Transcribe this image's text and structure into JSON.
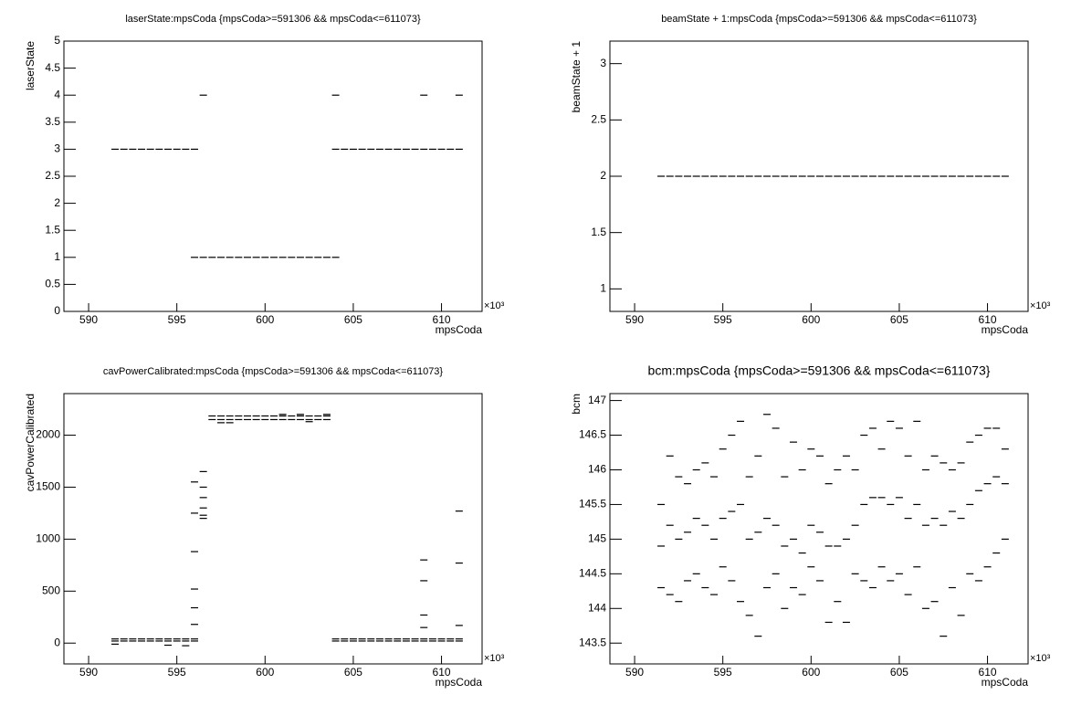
{
  "chart_data": [
    {
      "type": "scatter",
      "title": "laserState:mpsCoda {mpsCoda>=591306 && mpsCoda<=611073}",
      "x_label": "mpsCoda",
      "y_label": "laserState",
      "x_multiplier": "×10³",
      "color": "#000000",
      "xlim": [
        588.6,
        612.3
      ],
      "xticks": [
        590,
        595,
        600,
        605,
        610
      ],
      "ylim": [
        0,
        5
      ],
      "yticks": [
        0,
        0.5,
        1,
        1.5,
        2,
        2.5,
        3,
        3.5,
        4,
        4.5,
        5
      ],
      "x": [
        591.5,
        592,
        592.5,
        593,
        593.5,
        594,
        594.5,
        595,
        595.5,
        596,
        596.5,
        597,
        597.5,
        598,
        598.5,
        599,
        599.5,
        600,
        600.5,
        601,
        601.5,
        602,
        602.5,
        603,
        603.5,
        604,
        604.5,
        605,
        605.5,
        606,
        606.5,
        607,
        607.5,
        608,
        608.5,
        609,
        609.5,
        610,
        610.5,
        611
      ],
      "series": [
        {
          "values": [
            3,
            3,
            3,
            3,
            3,
            3,
            3,
            3,
            3,
            3,
            4,
            1,
            1,
            1,
            1,
            1,
            1,
            1,
            1,
            1,
            1,
            1,
            1,
            1,
            1,
            1,
            3,
            3,
            3,
            3,
            3,
            3,
            3,
            3,
            3,
            3,
            3,
            3,
            3,
            3
          ]
        },
        {
          "values": [
            null,
            null,
            null,
            null,
            null,
            null,
            null,
            null,
            null,
            1,
            1,
            null,
            null,
            null,
            null,
            null,
            null,
            null,
            null,
            null,
            null,
            null,
            null,
            null,
            null,
            3,
            null,
            null,
            null,
            null,
            null,
            null,
            null,
            null,
            null,
            4,
            null,
            null,
            null,
            4
          ]
        },
        {
          "values": [
            null,
            null,
            null,
            null,
            null,
            null,
            null,
            null,
            null,
            null,
            null,
            null,
            null,
            null,
            null,
            null,
            null,
            null,
            null,
            null,
            null,
            null,
            null,
            null,
            null,
            4,
            null,
            null,
            null,
            null,
            null,
            null,
            null,
            null,
            null,
            null,
            null,
            null,
            null,
            null
          ]
        }
      ]
    },
    {
      "type": "scatter",
      "title": "beamState + 1:mpsCoda {mpsCoda>=591306 && mpsCoda<=611073}",
      "x_label": "mpsCoda",
      "y_label": "beamState + 1",
      "x_multiplier": "×10³",
      "color": "#000000",
      "xlim": [
        588.6,
        612.3
      ],
      "xticks": [
        590,
        595,
        600,
        605,
        610
      ],
      "ylim": [
        0.8,
        3.2
      ],
      "yticks": [
        1,
        1.5,
        2,
        2.5,
        3
      ],
      "x": [
        591.5,
        592,
        592.5,
        593,
        593.5,
        594,
        594.5,
        595,
        595.5,
        596,
        596.5,
        597,
        597.5,
        598,
        598.5,
        599,
        599.5,
        600,
        600.5,
        601,
        601.5,
        602,
        602.5,
        603,
        603.5,
        604,
        604.5,
        605,
        605.5,
        606,
        606.5,
        607,
        607.5,
        608,
        608.5,
        609,
        609.5,
        610,
        610.5,
        611
      ],
      "series": [
        {
          "values": [
            2,
            2,
            2,
            2,
            2,
            2,
            2,
            2,
            2,
            2,
            2,
            2,
            2,
            2,
            2,
            2,
            2,
            2,
            2,
            2,
            2,
            2,
            2,
            2,
            2,
            2,
            2,
            2,
            2,
            2,
            2,
            2,
            2,
            2,
            2,
            2,
            2,
            2,
            2,
            2
          ]
        }
      ]
    },
    {
      "type": "scatter",
      "title": "cavPowerCalibrated:mpsCoda {mpsCoda>=591306 && mpsCoda<=611073}",
      "x_label": "mpsCoda",
      "y_label": "cavPowerCalibrated",
      "x_multiplier": "×10³",
      "color": "#000000",
      "xlim": [
        588.6,
        612.3
      ],
      "xticks": [
        590,
        595,
        600,
        605,
        610
      ],
      "ylim": [
        -200,
        2400
      ],
      "yticks": [
        0,
        500,
        1000,
        1500,
        2000
      ],
      "x": [
        591.5,
        592,
        592.5,
        593,
        593.5,
        594,
        594.5,
        595,
        595.5,
        596,
        596.5,
        597,
        597.5,
        598,
        598.5,
        599,
        599.5,
        600,
        600.5,
        601,
        601.5,
        602,
        602.5,
        603,
        603.5,
        604,
        604.5,
        605,
        605.5,
        606,
        606.5,
        607,
        607.5,
        608,
        608.5,
        609,
        609.5,
        610,
        610.5,
        611
      ],
      "series": [
        {
          "values": [
            20,
            20,
            20,
            20,
            20,
            20,
            20,
            20,
            20,
            20,
            null,
            null,
            null,
            null,
            null,
            null,
            null,
            null,
            null,
            null,
            null,
            null,
            null,
            null,
            null,
            20,
            20,
            20,
            20,
            20,
            20,
            20,
            20,
            20,
            20,
            20,
            20,
            20,
            20,
            20
          ]
        },
        {
          "values": [
            40,
            40,
            40,
            40,
            40,
            40,
            40,
            40,
            40,
            40,
            null,
            2150,
            2150,
            2150,
            2150,
            2150,
            2150,
            2150,
            2150,
            2150,
            2150,
            2150,
            2150,
            2150,
            2150,
            40,
            40,
            40,
            40,
            40,
            40,
            40,
            40,
            40,
            40,
            40,
            40,
            40,
            40,
            40
          ]
        },
        {
          "values": [
            null,
            null,
            null,
            null,
            null,
            null,
            null,
            null,
            null,
            180,
            1200,
            2185,
            2185,
            2185,
            2185,
            2185,
            2185,
            2185,
            2185,
            2185,
            2185,
            2185,
            2185,
            2185,
            2185,
            null,
            null,
            null,
            null,
            null,
            null,
            null,
            null,
            null,
            null,
            600,
            null,
            null,
            null,
            1270
          ]
        },
        {
          "values": [
            -10,
            null,
            null,
            null,
            null,
            null,
            -20,
            null,
            -25,
            340,
            1300,
            null,
            2120,
            2120,
            null,
            null,
            null,
            null,
            null,
            2200,
            null,
            2200,
            2130,
            null,
            2200,
            null,
            null,
            null,
            null,
            null,
            null,
            null,
            null,
            null,
            null,
            270,
            null,
            null,
            null,
            770
          ]
        },
        {
          "values": [
            null,
            null,
            null,
            null,
            null,
            null,
            null,
            null,
            null,
            520,
            1400,
            null,
            null,
            null,
            null,
            null,
            null,
            null,
            null,
            null,
            null,
            null,
            null,
            null,
            null,
            null,
            null,
            null,
            null,
            null,
            null,
            null,
            null,
            null,
            null,
            800,
            null,
            null,
            null,
            170
          ]
        },
        {
          "values": [
            null,
            null,
            null,
            null,
            null,
            null,
            null,
            null,
            null,
            880,
            1500,
            null,
            null,
            null,
            null,
            null,
            null,
            null,
            null,
            null,
            null,
            null,
            null,
            null,
            null,
            null,
            null,
            null,
            null,
            null,
            null,
            null,
            null,
            null,
            null,
            150,
            null,
            null,
            null,
            null
          ]
        },
        {
          "values": [
            null,
            null,
            null,
            null,
            null,
            null,
            null,
            null,
            null,
            1250,
            1650,
            null,
            null,
            null,
            null,
            null,
            null,
            null,
            null,
            null,
            null,
            null,
            null,
            null,
            null,
            null,
            null,
            null,
            null,
            null,
            null,
            null,
            null,
            null,
            null,
            null,
            null,
            null,
            null,
            null
          ]
        },
        {
          "values": [
            null,
            null,
            null,
            null,
            null,
            null,
            null,
            null,
            null,
            1550,
            1230,
            null,
            null,
            null,
            null,
            null,
            null,
            null,
            null,
            null,
            null,
            null,
            null,
            null,
            null,
            null,
            null,
            null,
            null,
            null,
            null,
            null,
            null,
            null,
            null,
            null,
            null,
            null,
            null,
            null
          ]
        }
      ]
    },
    {
      "type": "scatter",
      "title": "bcm:mpsCoda {mpsCoda>=591306 && mpsCoda<=611073}",
      "x_label": "mpsCoda",
      "y_label": "bcm",
      "x_multiplier": "×10³",
      "color": "#000000",
      "xlim": [
        588.6,
        612.3
      ],
      "xticks": [
        590,
        595,
        600,
        605,
        610
      ],
      "ylim": [
        143.2,
        147.1
      ],
      "yticks": [
        143.5,
        144,
        144.5,
        145,
        145.5,
        146,
        146.5,
        147
      ],
      "x": [
        591.5,
        592,
        592.5,
        593,
        593.5,
        594,
        594.5,
        595,
        595.5,
        596,
        596.5,
        597,
        597.5,
        598,
        598.5,
        599,
        599.5,
        600,
        600.5,
        601,
        601.5,
        602,
        602.5,
        603,
        603.5,
        604,
        604.5,
        605,
        605.5,
        606,
        606.5,
        607,
        607.5,
        608,
        608.5,
        609,
        609.5,
        610,
        610.5,
        611
      ],
      "series": [
        {
          "values": [
            144.3,
            144.2,
            144.1,
            144.4,
            144.5,
            144.3,
            144.2,
            144.6,
            144.4,
            144.1,
            143.9,
            143.6,
            144.3,
            144.5,
            144.0,
            144.3,
            144.2,
            144.6,
            144.4,
            143.8,
            144.1,
            143.8,
            144.5,
            144.4,
            144.3,
            144.6,
            144.4,
            144.5,
            144.2,
            144.6,
            144.0,
            144.1,
            143.6,
            144.3,
            143.9,
            144.5,
            144.4,
            144.6,
            144.8,
            145.0
          ]
        },
        {
          "values": [
            144.9,
            145.2,
            145.0,
            145.1,
            145.3,
            145.2,
            145.0,
            145.3,
            145.4,
            145.5,
            145.0,
            145.1,
            145.3,
            145.2,
            144.9,
            145.0,
            144.8,
            145.2,
            145.1,
            144.9,
            144.9,
            145.0,
            145.2,
            145.5,
            145.6,
            145.6,
            145.5,
            145.6,
            145.3,
            145.5,
            145.2,
            145.3,
            145.2,
            145.4,
            145.3,
            145.5,
            145.7,
            145.8,
            145.9,
            145.8
          ]
        },
        {
          "values": [
            145.5,
            146.2,
            145.9,
            145.8,
            146.0,
            146.1,
            145.9,
            146.3,
            146.5,
            146.7,
            145.9,
            146.2,
            146.8,
            146.6,
            145.9,
            146.4,
            146.0,
            146.3,
            146.2,
            145.8,
            146.0,
            146.2,
            146.0,
            146.5,
            146.6,
            146.3,
            146.7,
            146.6,
            146.2,
            146.7,
            146.0,
            146.2,
            146.1,
            146.0,
            146.1,
            146.4,
            146.5,
            146.6,
            146.6,
            146.3
          ]
        }
      ]
    }
  ]
}
